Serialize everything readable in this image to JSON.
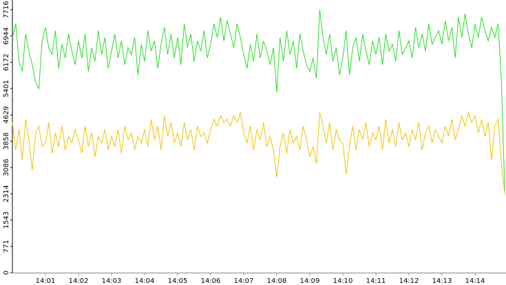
{
  "chart_data": {
    "type": "line",
    "categories": [
      null,
      null,
      null,
      null,
      null,
      null,
      null,
      null,
      null,
      null,
      "14:01",
      null,
      null,
      null,
      null,
      null,
      null,
      null,
      null,
      null,
      "14:02",
      null,
      null,
      null,
      null,
      null,
      null,
      null,
      null,
      null,
      "14:03",
      null,
      null,
      null,
      null,
      null,
      null,
      null,
      null,
      null,
      "14:04",
      null,
      null,
      null,
      null,
      null,
      null,
      null,
      null,
      null,
      "14:05",
      null,
      null,
      null,
      null,
      null,
      null,
      null,
      null,
      null,
      "14:06",
      null,
      null,
      null,
      null,
      null,
      null,
      null,
      null,
      null,
      "14:07",
      null,
      null,
      null,
      null,
      null,
      null,
      null,
      null,
      null,
      "14:08",
      null,
      null,
      null,
      null,
      null,
      null,
      null,
      null,
      null,
      "14:09",
      null,
      null,
      null,
      null,
      null,
      null,
      null,
      null,
      null,
      "14:10",
      null,
      null,
      null,
      null,
      null,
      null,
      null,
      null,
      null,
      "14:11",
      null,
      null,
      null,
      null,
      null,
      null,
      null,
      null,
      null,
      "14:12",
      null,
      null,
      null,
      null,
      null,
      null,
      null,
      null,
      null,
      "14:13",
      null,
      null,
      null,
      null,
      null,
      null,
      null,
      null,
      null,
      "14:14",
      null,
      null,
      null,
      null,
      null,
      null,
      null,
      null,
      null
    ],
    "series": [
      {
        "color": "#22e022",
        "values": [
          6900,
          7300,
          6200,
          5900,
          7000,
          6500,
          6100,
          5600,
          5400,
          6800,
          7200,
          6600,
          6400,
          7100,
          6000,
          6700,
          6300,
          7000,
          6500,
          6100,
          6800,
          6300,
          7000,
          5900,
          6600,
          6200,
          7100,
          6400,
          6900,
          6000,
          6500,
          7000,
          6300,
          6800,
          6100,
          6600,
          6400,
          6900,
          5800,
          6700,
          6200,
          7100,
          6500,
          6800,
          6000,
          6700,
          7200,
          6400,
          7000,
          6300,
          6900,
          6100,
          7300,
          6600,
          7000,
          6200,
          6800,
          6500,
          7100,
          6300,
          6700,
          7300,
          6900,
          7500,
          6800,
          7400,
          7000,
          6600,
          7300,
          6900,
          6400,
          6000,
          6700,
          6200,
          7000,
          6300,
          6800,
          6500,
          6100,
          6600,
          5300,
          6900,
          6200,
          7100,
          6400,
          6800,
          6000,
          7000,
          6500,
          6100,
          5900,
          6300,
          5700,
          7716,
          6900,
          6400,
          7000,
          6200,
          6600,
          5800,
          6300,
          7100,
          5800,
          6600,
          6900,
          6200,
          7000,
          6500,
          6100,
          6800,
          6400,
          6900,
          6100,
          7000,
          6500,
          6700,
          6200,
          7100,
          6400,
          6600,
          6800,
          6300,
          7200,
          6600,
          7000,
          6500,
          7300,
          6700,
          6900,
          7100,
          6700,
          7400,
          6800,
          7200,
          6300,
          7500,
          6900,
          7600,
          7000,
          6600,
          7300,
          6900,
          7500,
          7100,
          6800,
          7200,
          6900,
          7300,
          5600,
          2400
        ]
      },
      {
        "color": "#f2c200",
        "values": [
          4400,
          3600,
          4200,
          3300,
          4500,
          3900,
          3000,
          4100,
          4300,
          3700,
          3800,
          4400,
          3500,
          4100,
          3700,
          4300,
          3600,
          4000,
          3800,
          4200,
          3900,
          3500,
          4300,
          3700,
          4100,
          3400,
          4000,
          3800,
          4200,
          3600,
          4000,
          3700,
          4200,
          3500,
          4300,
          3900,
          4100,
          3600,
          4000,
          3800,
          4200,
          3700,
          4500,
          3900,
          4300,
          3600,
          4600,
          4000,
          4400,
          3800,
          4100,
          3700,
          4400,
          3900,
          4200,
          3600,
          4300,
          4000,
          4100,
          3800,
          4200,
          4500,
          4300,
          4600,
          4400,
          4500,
          4300,
          4600,
          4400,
          4700,
          4100,
          3800,
          4300,
          3600,
          4200,
          3900,
          4400,
          3700,
          4000,
          3600,
          2800,
          3700,
          4100,
          3500,
          4200,
          3800,
          4000,
          3600,
          4300,
          3900,
          3400,
          3700,
          3200,
          4700,
          4300,
          3800,
          4400,
          3600,
          4200,
          3900,
          3800,
          2900,
          3700,
          4300,
          3600,
          4200,
          3900,
          4400,
          3700,
          4100,
          3900,
          4300,
          3600,
          4500,
          3800,
          4200,
          3700,
          4400,
          3900,
          4100,
          3700,
          4200,
          3900,
          4400,
          3600,
          4100,
          4300,
          3800,
          4200,
          4000,
          3800,
          4300,
          4000,
          4500,
          3900,
          4200,
          4600,
          4300,
          4700,
          4400,
          4600,
          4100,
          4500,
          4000,
          4400,
          3300,
          4300,
          4500,
          3200,
          2300
        ]
      }
    ],
    "ylim": [
      0,
      8000
    ],
    "yticks": [
      0,
      771,
      1543,
      2314,
      3086,
      3858,
      4629,
      5401,
      6172,
      6944,
      7716
    ]
  }
}
